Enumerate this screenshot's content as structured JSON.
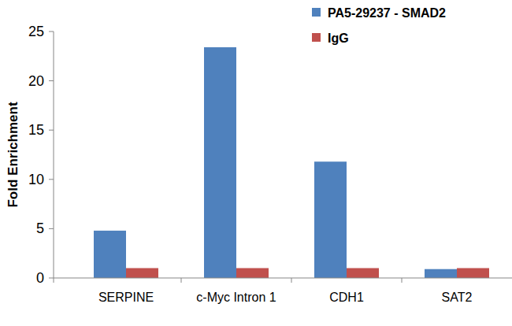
{
  "chart_data": {
    "type": "bar",
    "y_label": "Fold Enrichment",
    "categories": [
      "SERPINE",
      "c-Myc Intron 1",
      "CDH1",
      "SAT2"
    ],
    "series": [
      {
        "name": "PA5-29237 - SMAD2",
        "color": "#4f81bd",
        "values": [
          4.8,
          23.4,
          11.8,
          0.9
        ]
      },
      {
        "name": "IgG",
        "color": "#c0504d",
        "values": [
          1,
          1,
          1,
          1
        ]
      }
    ],
    "ylim": [
      0,
      25
    ],
    "yticks": [
      0,
      5,
      10,
      15,
      20,
      25
    ],
    "grid": false,
    "legend": "top-right"
  }
}
